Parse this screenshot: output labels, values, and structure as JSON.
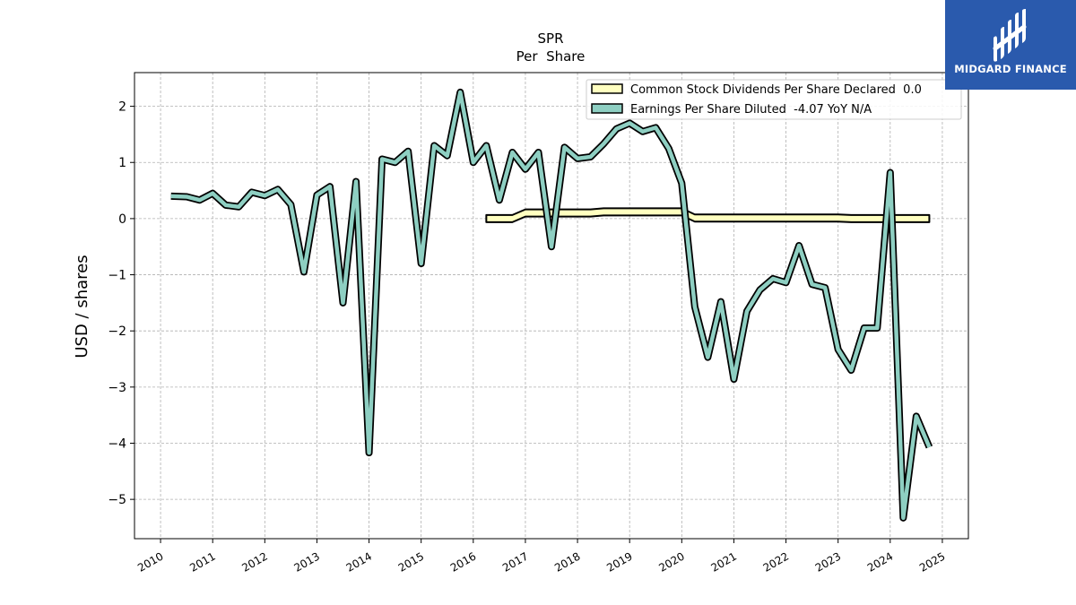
{
  "brand": {
    "name": "MIDGARD FINANCE",
    "color": "#2a5aad"
  },
  "chart_data": {
    "type": "line",
    "title": "SPR",
    "subtitle": "Per  Share",
    "ylabel": "USD / shares",
    "xlabel": "",
    "xlim": [
      2009.5,
      2025.5
    ],
    "ylim": [
      -5.7,
      2.6
    ],
    "yticks": [
      2,
      1,
      0,
      -1,
      -2,
      -3,
      -4,
      -5
    ],
    "ytick_labels": [
      "2",
      "1",
      "0",
      "−1",
      "−2",
      "−3",
      "−4",
      "−5"
    ],
    "xticks": [
      2010,
      2011,
      2012,
      2013,
      2014,
      2015,
      2016,
      2017,
      2018,
      2019,
      2020,
      2021,
      2022,
      2023,
      2024,
      2025
    ],
    "xtick_labels": [
      "2010",
      "2011",
      "2012",
      "2013",
      "2014",
      "2015",
      "2016",
      "2017",
      "2018",
      "2019",
      "2020",
      "2021",
      "2022",
      "2023",
      "2024",
      "2025"
    ],
    "grid": true,
    "legend_position": "top-right",
    "series": [
      {
        "name": "Common Stock Dividends Per Share Declared  0.0",
        "color": "#ffffc0",
        "band": true,
        "x": [
          2016.25,
          2016.5,
          2016.75,
          2017.0,
          2017.25,
          2017.5,
          2017.75,
          2018.0,
          2018.25,
          2018.5,
          2018.75,
          2019.0,
          2019.25,
          2019.5,
          2019.75,
          2020.0,
          2020.25,
          2020.5,
          2020.75,
          2021.0,
          2021.25,
          2021.5,
          2021.75,
          2022.0,
          2022.25,
          2022.5,
          2022.75,
          2023.0,
          2023.25,
          2023.5,
          2023.75,
          2024.0,
          2024.25,
          2024.5,
          2024.75
        ],
        "y": [
          0.0,
          0.0,
          0.0,
          0.1,
          0.1,
          0.1,
          0.1,
          0.1,
          0.1,
          0.12,
          0.12,
          0.12,
          0.12,
          0.12,
          0.12,
          0.12,
          0.01,
          0.01,
          0.01,
          0.01,
          0.01,
          0.01,
          0.01,
          0.01,
          0.01,
          0.01,
          0.01,
          0.01,
          0.0,
          0.0,
          0.0,
          0.0,
          0.0,
          0.0,
          0.0
        ]
      },
      {
        "name": "Earnings Per Share Diluted  -4.07 YoY N/A",
        "color": "#8ecfc2",
        "x": [
          2010.2,
          2010.5,
          2010.75,
          2011.0,
          2011.25,
          2011.5,
          2011.75,
          2012.0,
          2012.25,
          2012.5,
          2012.75,
          2013.0,
          2013.25,
          2013.5,
          2013.75,
          2014.0,
          2014.25,
          2014.5,
          2014.75,
          2015.0,
          2015.25,
          2015.5,
          2015.75,
          2016.0,
          2016.25,
          2016.5,
          2016.75,
          2017.0,
          2017.25,
          2017.5,
          2017.75,
          2018.0,
          2018.25,
          2018.5,
          2018.75,
          2019.0,
          2019.25,
          2019.5,
          2019.75,
          2020.0,
          2020.25,
          2020.5,
          2020.75,
          2021.0,
          2021.25,
          2021.5,
          2021.75,
          2022.0,
          2022.25,
          2022.5,
          2022.75,
          2023.0,
          2023.25,
          2023.5,
          2023.75,
          2024.0,
          2024.25,
          2024.5,
          2024.75
        ],
        "y": [
          0.4,
          0.39,
          0.33,
          0.45,
          0.24,
          0.21,
          0.47,
          0.41,
          0.52,
          0.25,
          -0.95,
          0.42,
          0.57,
          -1.5,
          0.66,
          -4.17,
          1.06,
          1.0,
          1.2,
          -0.8,
          1.3,
          1.12,
          2.25,
          1.0,
          1.3,
          0.33,
          1.18,
          0.88,
          1.18,
          -0.5,
          1.27,
          1.07,
          1.1,
          1.33,
          1.6,
          1.7,
          1.55,
          1.62,
          1.25,
          0.63,
          -1.57,
          -2.47,
          -1.48,
          -2.86,
          -1.65,
          -1.27,
          -1.07,
          -1.14,
          -0.48,
          -1.17,
          -1.23,
          -2.33,
          -2.7,
          -1.95,
          -1.95,
          0.82,
          -5.33,
          -3.52,
          -4.07
        ]
      }
    ]
  }
}
